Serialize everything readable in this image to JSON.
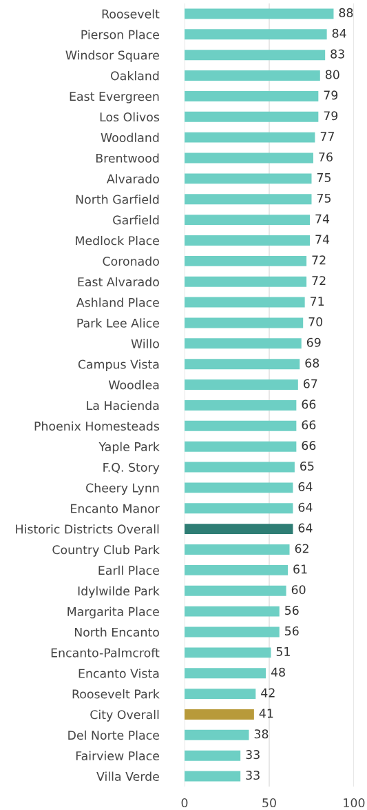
{
  "chart_data": {
    "type": "bar",
    "orientation": "horizontal",
    "categories": [
      "Roosevelt",
      "Pierson Place",
      "Windsor Square",
      "Oakland",
      "East Evergreen",
      "Los Olivos",
      "Woodland",
      "Brentwood",
      "Alvarado",
      "North Garfield",
      "Garfield",
      "Medlock Place",
      "Coronado",
      "East Alvarado",
      "Ashland Place",
      "Park Lee Alice",
      "Willo",
      "Campus Vista",
      "Woodlea",
      "La Hacienda",
      "Phoenix Homesteads",
      "Yaple Park",
      "F.Q. Story",
      "Cheery Lynn",
      "Encanto Manor",
      "Historic Districts Overall",
      "Country Club Park",
      "Earll Place",
      "Idylwilde Park",
      "Margarita Place",
      "North Encanto",
      "Encanto-Palmcroft",
      "Encanto Vista",
      "Roosevelt Park",
      "City Overall",
      "Del Norte Place",
      "Fairview Place",
      "Villa Verde"
    ],
    "values": [
      88,
      84,
      83,
      80,
      79,
      79,
      77,
      76,
      75,
      75,
      74,
      74,
      72,
      72,
      71,
      70,
      69,
      68,
      67,
      66,
      66,
      66,
      65,
      64,
      64,
      64,
      62,
      61,
      60,
      56,
      56,
      51,
      48,
      42,
      41,
      38,
      33,
      33
    ],
    "colors": [
      "#6dcfc4",
      "#6dcfc4",
      "#6dcfc4",
      "#6dcfc4",
      "#6dcfc4",
      "#6dcfc4",
      "#6dcfc4",
      "#6dcfc4",
      "#6dcfc4",
      "#6dcfc4",
      "#6dcfc4",
      "#6dcfc4",
      "#6dcfc4",
      "#6dcfc4",
      "#6dcfc4",
      "#6dcfc4",
      "#6dcfc4",
      "#6dcfc4",
      "#6dcfc4",
      "#6dcfc4",
      "#6dcfc4",
      "#6dcfc4",
      "#6dcfc4",
      "#6dcfc4",
      "#6dcfc4",
      "#2e7d74",
      "#6dcfc4",
      "#6dcfc4",
      "#6dcfc4",
      "#6dcfc4",
      "#6dcfc4",
      "#6dcfc4",
      "#6dcfc4",
      "#6dcfc4",
      "#b89a3a",
      "#6dcfc4",
      "#6dcfc4",
      "#6dcfc4"
    ],
    "xlim": [
      0,
      100
    ],
    "xticks": [
      0,
      50,
      100
    ],
    "grid": "x",
    "data_labels": true
  }
}
